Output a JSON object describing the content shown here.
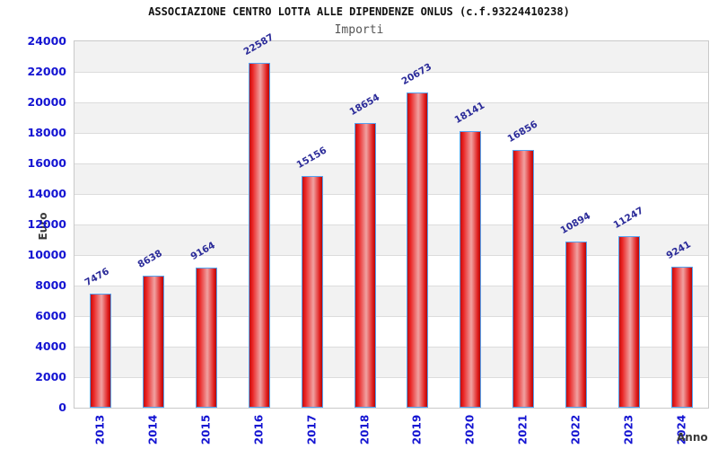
{
  "chart_data": {
    "type": "bar",
    "title": "ASSOCIAZIONE CENTRO LOTTA ALLE DIPENDENZE ONLUS (c.f.93224410238)",
    "subtitle": "Importi",
    "xlabel": "Anno",
    "ylabel": "Euro",
    "categories": [
      "2013",
      "2014",
      "2015",
      "2016",
      "2017",
      "2018",
      "2019",
      "2020",
      "2021",
      "2022",
      "2023",
      "2024"
    ],
    "values": [
      7476,
      8638,
      9164,
      22587,
      15156,
      18654,
      20673,
      18141,
      16856,
      10894,
      11247,
      9241
    ],
    "ylim": [
      0,
      24000
    ],
    "ytick_step": 2000,
    "ytick_labels": [
      "0",
      "2000",
      "4000",
      "6000",
      "8000",
      "10000",
      "12000",
      "14000",
      "16000",
      "18000",
      "20000",
      "22000",
      "24000"
    ],
    "grid": true,
    "legend": "none",
    "band_alternation": true,
    "colors": {
      "bar_fill_edge": "#c01010",
      "bar_fill_center": "#f0a2a2",
      "bar_border": "#55a2f0",
      "value_label": "#2b2b99",
      "tick_label": "#1414d2",
      "axis_title": "#3a3a3a",
      "band": "#f2f2f2",
      "gridline": "#dcdcdc",
      "plot_border": "#c9c9c9",
      "title": "#111111",
      "subtitle": "#555555"
    }
  }
}
